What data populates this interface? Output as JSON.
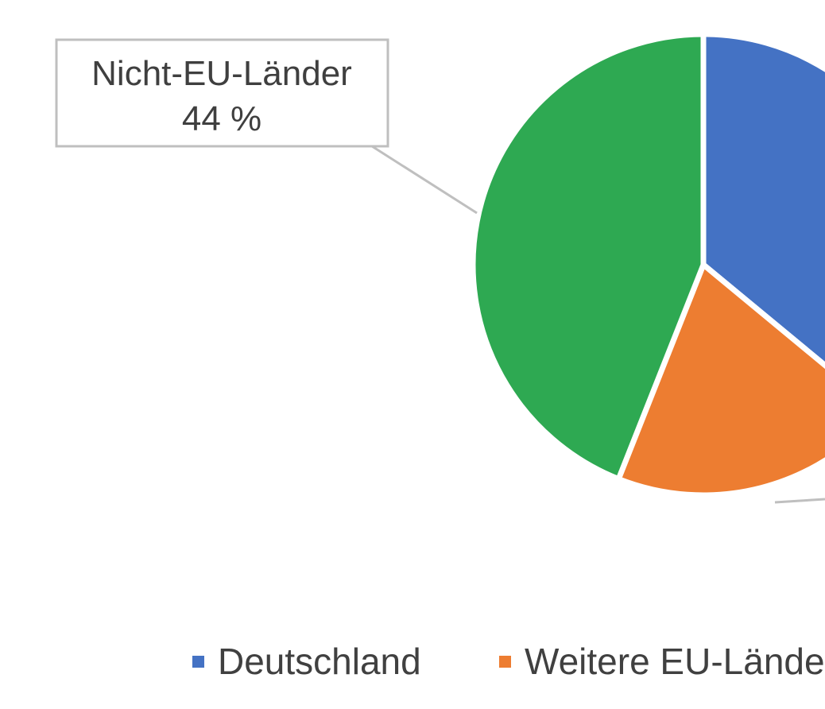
{
  "chart_data": {
    "type": "pie",
    "series": [
      {
        "name": "Deutschland",
        "value": 36,
        "color": "#4472C4"
      },
      {
        "name": "Weitere EU-Länder",
        "value": 20,
        "color": "#ED7D31"
      },
      {
        "name": "Nicht-EU-Länder",
        "value": 44,
        "color": "#2EA952"
      }
    ],
    "data_labels": [
      {
        "series": "Nicht-EU-Länder",
        "line1": "Nicht-EU-Länder",
        "line2": "44 %"
      }
    ],
    "legend": {
      "position": "bottom",
      "items": [
        "Deutschland",
        "Weitere EU-Länder"
      ]
    }
  }
}
